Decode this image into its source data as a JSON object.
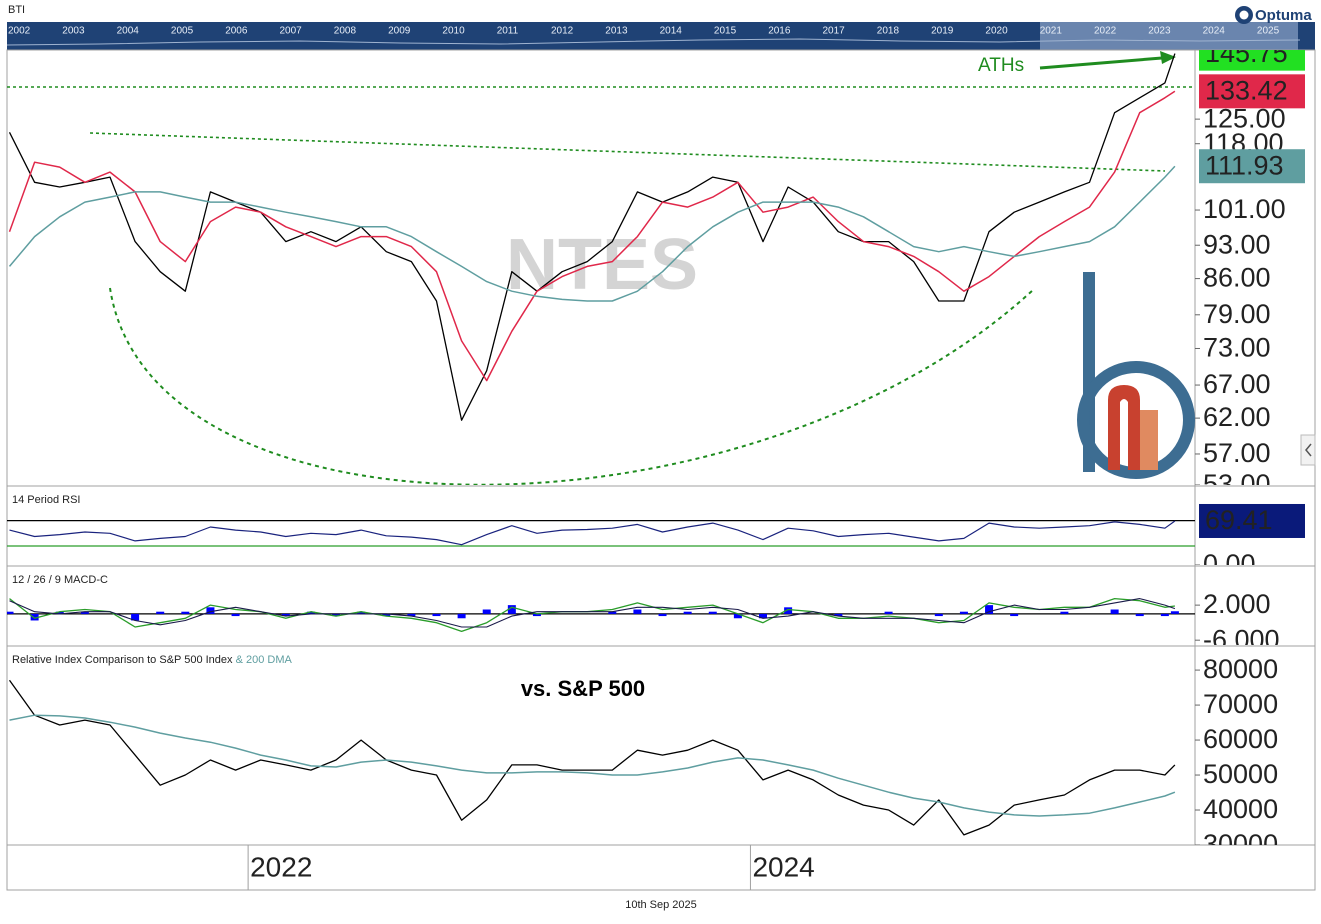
{
  "header": {
    "symbol": "BTI",
    "brand": "Optuma"
  },
  "navigator": {
    "years": [
      "2002",
      "2003",
      "2004",
      "2005",
      "2006",
      "2007",
      "2008",
      "2009",
      "2010",
      "2011",
      "2012",
      "2013",
      "2014",
      "2015",
      "2016",
      "2017",
      "2018",
      "2019",
      "2020",
      "2021",
      "2022",
      "2023",
      "2024",
      "2025"
    ]
  },
  "footer": {
    "date": "10th Sep 2025"
  },
  "chart_data": [
    {
      "type": "line",
      "log_scale": true,
      "annotation": "ATHs",
      "watermark": "NTES",
      "x": [
        2021.05,
        2021.15,
        2021.25,
        2021.35,
        2021.45,
        2021.55,
        2021.65,
        2021.75,
        2021.85,
        2021.95,
        2022.05,
        2022.15,
        2022.25,
        2022.35,
        2022.45,
        2022.55,
        2022.65,
        2022.75,
        2022.85,
        2022.95,
        2023.05,
        2023.15,
        2023.25,
        2023.35,
        2023.45,
        2023.55,
        2023.65,
        2023.75,
        2023.85,
        2023.95,
        2024.05,
        2024.15,
        2024.25,
        2024.35,
        2024.45,
        2024.55,
        2024.65,
        2024.75,
        2024.85,
        2024.95,
        2025.05,
        2025.15,
        2025.25,
        2025.35,
        2025.45,
        2025.55,
        2025.65,
        2025.69
      ],
      "xlim": [
        2021.04,
        2025.77
      ],
      "ylim": [
        53,
        147
      ],
      "yticks": [
        {
          "value": 53,
          "label": "53.00"
        },
        {
          "value": 57,
          "label": "57.00"
        },
        {
          "value": 62,
          "label": "62.00"
        },
        {
          "value": 67,
          "label": "67.00"
        },
        {
          "value": 73,
          "label": "73.00"
        },
        {
          "value": 79,
          "label": "79.00"
        },
        {
          "value": 86,
          "label": "86.00"
        },
        {
          "value": 93,
          "label": "93.00"
        },
        {
          "value": 101,
          "label": "101.00"
        },
        {
          "value": 118,
          "label": "118.00"
        },
        {
          "value": 125,
          "label": "125.00"
        }
      ],
      "series": [
        {
          "color": "#000000",
          "width": 1.3,
          "box": "#22e022",
          "box_text": "#000000",
          "values": [
            121.2,
            107.8,
            106.6,
            107.8,
            109.1,
            93.8,
            87.4,
            83.5,
            105.4,
            102.9,
            100.5,
            93.8,
            96.0,
            93.8,
            97.1,
            91.6,
            89.5,
            81.6,
            61.7,
            69.3,
            87.4,
            83.5,
            87.4,
            89.5,
            93.8,
            105.4,
            102.9,
            105.4,
            109.1,
            107.8,
            93.8,
            106.6,
            102.9,
            96.0,
            93.8,
            93.8,
            89.5,
            81.6,
            81.6,
            96.0,
            100.5,
            102.9,
            105.4,
            107.8,
            126.9,
            131.4,
            136.1,
            145.75
          ]
        },
        {
          "color": "#e0284a",
          "width": 1.5,
          "box": "#e0284a",
          "box_text": "#ffffff",
          "values": [
            96.0,
            113.0,
            111.7,
            107.8,
            110.4,
            105.4,
            93.8,
            89.5,
            98.3,
            101.7,
            100.5,
            97.1,
            94.9,
            92.7,
            94.9,
            94.9,
            92.7,
            87.4,
            74.3,
            67.7,
            76.0,
            83.5,
            86.4,
            88.5,
            89.5,
            94.9,
            102.9,
            101.7,
            104.1,
            107.8,
            100.5,
            101.7,
            104.1,
            98.3,
            93.8,
            92.7,
            90.6,
            87.4,
            83.5,
            86.4,
            90.6,
            94.9,
            98.3,
            101.7,
            110.4,
            126.9,
            131.4,
            133.42
          ]
        },
        {
          "color": "#5f9ea0",
          "width": 1.5,
          "box": "#5f9ea0",
          "box_text": "#ffffff",
          "values": [
            88.5,
            94.9,
            99.4,
            102.9,
            104.1,
            105.4,
            105.4,
            104.1,
            102.9,
            102.9,
            101.7,
            100.5,
            99.4,
            98.3,
            97.1,
            97.1,
            94.9,
            91.6,
            88.5,
            85.4,
            83.5,
            82.5,
            81.9,
            81.6,
            81.6,
            83.5,
            87.4,
            92.7,
            97.1,
            100.5,
            102.9,
            102.9,
            102.9,
            101.7,
            99.4,
            96.0,
            92.7,
            91.6,
            92.7,
            91.6,
            90.6,
            91.6,
            92.7,
            93.8,
            97.1,
            102.9,
            109.1,
            111.93
          ]
        }
      ]
    },
    {
      "type": "line",
      "title": "14 Period RSI",
      "x": [
        2021.05,
        2021.15,
        2021.25,
        2021.35,
        2021.45,
        2021.55,
        2021.65,
        2021.75,
        2021.85,
        2021.95,
        2022.05,
        2022.15,
        2022.25,
        2022.35,
        2022.45,
        2022.55,
        2022.65,
        2022.75,
        2022.85,
        2022.95,
        2023.05,
        2023.15,
        2023.25,
        2023.35,
        2023.45,
        2023.55,
        2023.65,
        2023.75,
        2023.85,
        2023.95,
        2024.05,
        2024.15,
        2024.25,
        2024.35,
        2024.45,
        2024.55,
        2024.65,
        2024.75,
        2024.85,
        2024.95,
        2025.05,
        2025.15,
        2025.25,
        2025.35,
        2025.45,
        2025.55,
        2025.65,
        2025.69
      ],
      "xlim": [
        2021.04,
        2025.77
      ],
      "ylim": [
        0,
        123
      ],
      "yticks": [
        {
          "value": 0,
          "label": "0.00"
        }
      ],
      "levels": [
        {
          "value": 70,
          "color": "#000000"
        },
        {
          "value": 30,
          "color": "#2a9d2a"
        }
      ],
      "series": [
        {
          "color": "#1a237e",
          "width": 1.2,
          "box": "#0a1a7a",
          "box_text": "#ffffff",
          "values": [
            55,
            45,
            48,
            52,
            50,
            38,
            42,
            45,
            60,
            55,
            52,
            45,
            50,
            48,
            55,
            46,
            44,
            40,
            32,
            48,
            62,
            50,
            55,
            56,
            58,
            64,
            52,
            60,
            66,
            55,
            40,
            58,
            54,
            45,
            48,
            50,
            44,
            38,
            42,
            66,
            60,
            58,
            60,
            62,
            68,
            64,
            58,
            69.41
          ]
        }
      ]
    },
    {
      "type": "line",
      "title": "12 / 26 / 9 MACD-C",
      "x": [
        2021.05,
        2021.15,
        2021.25,
        2021.35,
        2021.45,
        2021.55,
        2021.65,
        2021.75,
        2021.85,
        2021.95,
        2022.05,
        2022.15,
        2022.25,
        2022.35,
        2022.45,
        2022.55,
        2022.65,
        2022.75,
        2022.85,
        2022.95,
        2023.05,
        2023.15,
        2023.25,
        2023.35,
        2023.45,
        2023.55,
        2023.65,
        2023.75,
        2023.85,
        2023.95,
        2024.05,
        2024.15,
        2024.25,
        2024.35,
        2024.45,
        2024.55,
        2024.65,
        2024.75,
        2024.85,
        2024.95,
        2025.05,
        2025.15,
        2025.25,
        2025.35,
        2025.45,
        2025.55,
        2025.65,
        2025.69
      ],
      "xlim": [
        2021.04,
        2025.77
      ],
      "ylim": [
        -7.1,
        10.7
      ],
      "yticks": [
        {
          "value": 2,
          "label": "2.000"
        },
        {
          "value": -6,
          "label": "-6.000"
        }
      ],
      "levels": [
        {
          "value": 0,
          "color": "#000000"
        }
      ],
      "series": [
        {
          "color": "#0000ff",
          "kind": "histogram",
          "values": [
            0.5,
            -1.5,
            0.5,
            0.5,
            0,
            -1.5,
            0.5,
            0.5,
            1.5,
            -0.5,
            0,
            -0.5,
            0.5,
            -0.5,
            0.5,
            -0.5,
            -0.5,
            -0.5,
            -1,
            1,
            2,
            -0.5,
            0,
            0,
            0.5,
            1,
            -0.5,
            0.5,
            0.5,
            -1,
            -1,
            1.5,
            0,
            -0.5,
            0,
            0.5,
            0,
            -0.5,
            0.5,
            2,
            -0.5,
            0,
            0.5,
            0,
            1,
            -0.5,
            -0.5,
            0.6
          ]
        },
        {
          "color": "#2a9d2a",
          "width": 1.3,
          "values": [
            3.5,
            -1,
            0.5,
            1,
            0.5,
            -3,
            -2,
            -1,
            2,
            1,
            0.5,
            -1,
            0.5,
            -0.5,
            0.5,
            -0.5,
            -1,
            -2,
            -4,
            -2,
            1.5,
            0,
            0.5,
            0.5,
            1,
            2.5,
            1,
            1.5,
            2,
            0,
            -2,
            1,
            0.5,
            -1,
            -1,
            -0.5,
            -1,
            -2,
            -1.5,
            2.5,
            1.5,
            1,
            1.5,
            1.5,
            3.5,
            3,
            1.5,
            1.8
          ]
        },
        {
          "color": "#1a1a4a",
          "width": 1.1,
          "values": [
            3,
            0.5,
            0,
            0.5,
            0.5,
            -1.5,
            -2.5,
            -1.5,
            0.5,
            1.5,
            0.5,
            -0.5,
            0,
            0,
            0,
            0,
            -0.5,
            -1.5,
            -3,
            -3,
            -0.5,
            0.5,
            0.5,
            0.5,
            0.5,
            1.5,
            1.5,
            1,
            1.5,
            1,
            -1,
            -0.5,
            0.5,
            -0.5,
            -1,
            -1,
            -1,
            -1.5,
            -2,
            0.5,
            2,
            1,
            1,
            1.5,
            2.5,
            3.5,
            2,
            1.2
          ]
        }
      ]
    },
    {
      "type": "line",
      "title": "Relative Index Comparison to S&P 500 Index",
      "title_extra": "& 200 DMA",
      "annotation": "vs. S&P 500",
      "x": [
        2021.05,
        2021.15,
        2021.25,
        2021.35,
        2021.45,
        2021.55,
        2021.65,
        2021.75,
        2021.85,
        2021.95,
        2022.05,
        2022.15,
        2022.25,
        2022.35,
        2022.45,
        2022.55,
        2022.65,
        2022.75,
        2022.85,
        2022.95,
        2023.05,
        2023.15,
        2023.25,
        2023.35,
        2023.45,
        2023.55,
        2023.65,
        2023.75,
        2023.85,
        2023.95,
        2024.05,
        2024.15,
        2024.25,
        2024.35,
        2024.45,
        2024.55,
        2024.65,
        2024.75,
        2024.85,
        2024.95,
        2025.05,
        2025.15,
        2025.25,
        2025.35,
        2025.45,
        2025.55,
        2025.65,
        2025.69
      ],
      "xlim": [
        2021.04,
        2025.77
      ],
      "ylim": [
        30000,
        86600
      ],
      "xticks": [
        2022,
        2024
      ],
      "yticks": [
        30000,
        40000,
        50000,
        60000,
        70000,
        80000
      ],
      "series": [
        {
          "color": "#000000",
          "width": 1.3,
          "values": [
            77100,
            67100,
            64300,
            65700,
            64300,
            55700,
            47100,
            50000,
            54300,
            51400,
            54300,
            52900,
            51400,
            54300,
            60000,
            54300,
            51400,
            50000,
            37100,
            42900,
            52900,
            52900,
            51400,
            51400,
            51400,
            57100,
            55700,
            57100,
            60000,
            57100,
            48600,
            51400,
            48600,
            44300,
            41400,
            40000,
            35700,
            42900,
            32900,
            35700,
            41400,
            42900,
            44300,
            48600,
            51400,
            51400,
            50000,
            52900
          ]
        },
        {
          "color": "#5f9ea0",
          "width": 1.5,
          "values": [
            65700,
            67100,
            66900,
            66300,
            65100,
            63700,
            62000,
            60600,
            59400,
            57700,
            55700,
            54300,
            52600,
            52300,
            53700,
            54300,
            53700,
            52600,
            51400,
            50600,
            50600,
            50900,
            50900,
            50600,
            50000,
            50000,
            50900,
            52000,
            53700,
            54900,
            54300,
            52900,
            51400,
            49100,
            47100,
            45100,
            43400,
            42300,
            40600,
            39400,
            38600,
            38300,
            38600,
            39100,
            40600,
            42300,
            44000,
            45100
          ]
        }
      ]
    }
  ]
}
